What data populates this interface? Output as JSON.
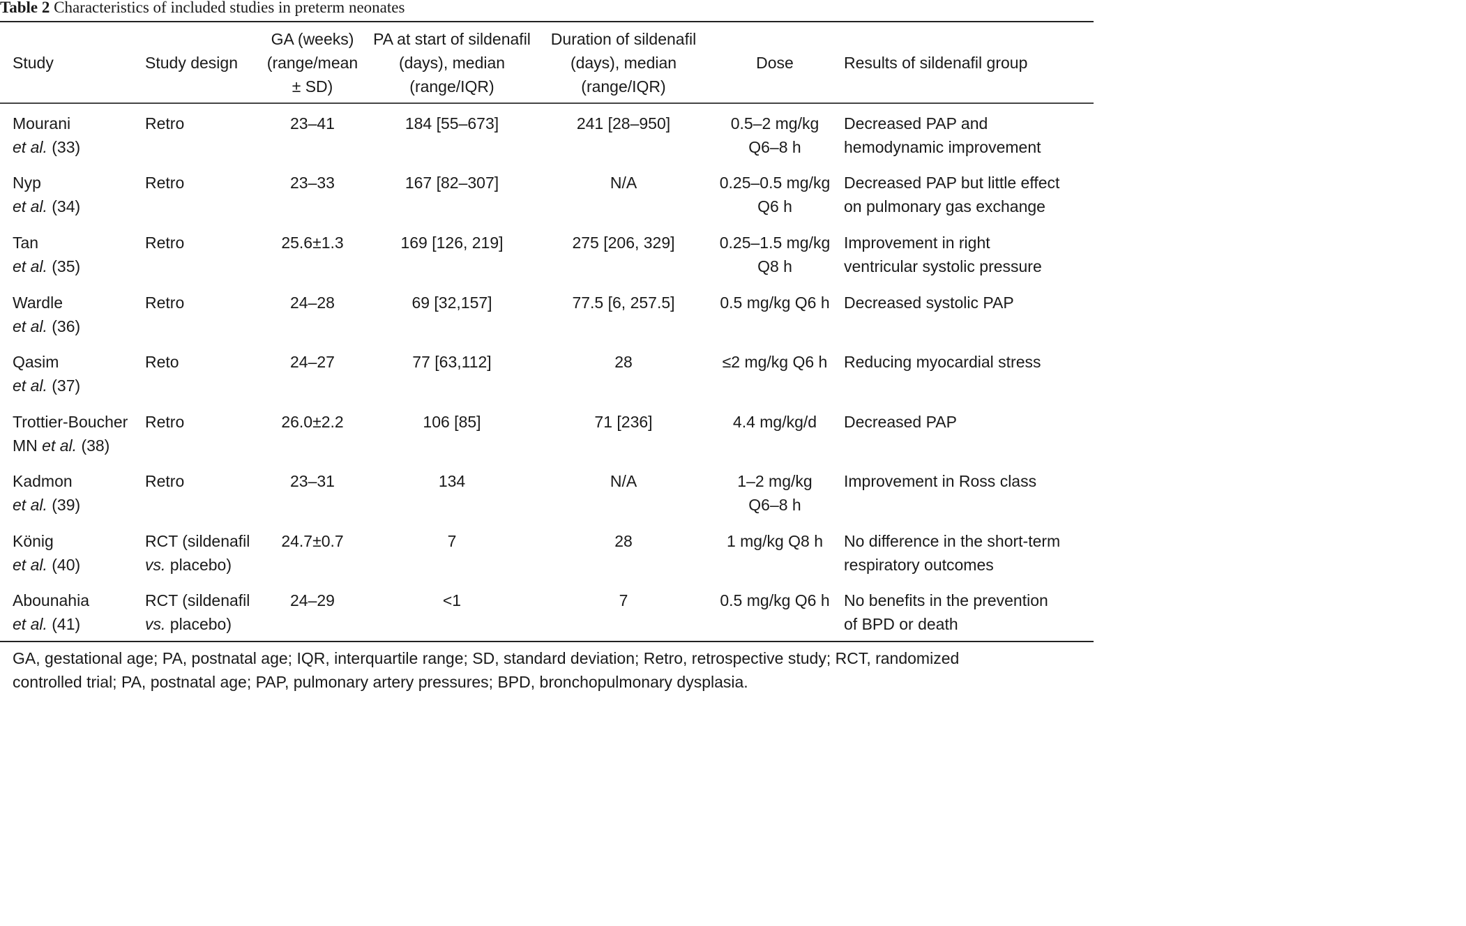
{
  "caption": {
    "label": "Table 2",
    "title": "Characteristics of included studies in preterm neonates"
  },
  "columns": [
    {
      "lines": [
        "Study"
      ]
    },
    {
      "lines": [
        "Study design"
      ]
    },
    {
      "lines": [
        "GA (weeks)",
        "(range/mean",
        "± SD)"
      ]
    },
    {
      "lines": [
        "PA at start of sildenafil",
        "(days), median",
        "(range/IQR)"
      ]
    },
    {
      "lines": [
        "Duration of sildenafil",
        "(days), median",
        "(range/IQR)"
      ]
    },
    {
      "lines": [
        "Dose"
      ]
    },
    {
      "lines": [
        "Results of sildenafil group"
      ]
    }
  ],
  "rows": [
    {
      "study_name": "Mourani",
      "study_prefix": "",
      "study_etal": "et al.",
      "study_ref": "(33)",
      "design": [
        "Retro"
      ],
      "design_vs": false,
      "ga": "23–41",
      "pa": "184 [55–673]",
      "duration": "241 [28–950]",
      "dose": [
        "0.5–2 mg/kg",
        "Q6–8 h"
      ],
      "results": [
        "Decreased PAP and",
        "hemodynamic improvement"
      ]
    },
    {
      "study_name": "Nyp",
      "study_prefix": "",
      "study_etal": "et al.",
      "study_ref": "(34)",
      "design": [
        "Retro"
      ],
      "design_vs": false,
      "ga": "23–33",
      "pa": "167 [82–307]",
      "duration": "N/A",
      "dose": [
        "0.25–0.5 mg/kg",
        "Q6 h"
      ],
      "results": [
        "Decreased PAP but little effect",
        "on pulmonary gas exchange"
      ]
    },
    {
      "study_name": "Tan",
      "study_prefix": "",
      "study_etal": "et al.",
      "study_ref": "(35)",
      "design": [
        "Retro"
      ],
      "design_vs": false,
      "ga": "25.6±1.3",
      "pa": "169 [126, 219]",
      "duration": "275 [206, 329]",
      "dose": [
        "0.25–1.5 mg/kg",
        "Q8 h"
      ],
      "results": [
        "Improvement in right",
        "ventricular systolic pressure"
      ]
    },
    {
      "study_name": "Wardle",
      "study_prefix": "",
      "study_etal": "et al.",
      "study_ref": "(36)",
      "design": [
        "Retro"
      ],
      "design_vs": false,
      "ga": "24–28",
      "pa": "69 [32,157]",
      "duration": "77.5 [6, 257.5]",
      "dose": [
        "0.5 mg/kg Q6 h"
      ],
      "results": [
        "Decreased systolic PAP"
      ]
    },
    {
      "study_name": "Qasim",
      "study_prefix": "",
      "study_etal": "et al.",
      "study_ref": "(37)",
      "design": [
        "Reto"
      ],
      "design_vs": false,
      "ga": "24–27",
      "pa": "77 [63,112]",
      "duration": "28",
      "dose": [
        "≤2 mg/kg Q6 h"
      ],
      "results": [
        "Reducing myocardial stress"
      ]
    },
    {
      "study_name": "Trottier-Boucher",
      "study_prefix": "MN",
      "study_etal": "et al.",
      "study_ref": "(38)",
      "design": [
        "Retro"
      ],
      "design_vs": false,
      "ga": "26.0±2.2",
      "pa": "106 [85]",
      "duration": "71 [236]",
      "dose": [
        "4.4 mg/kg/d"
      ],
      "results": [
        "Decreased PAP"
      ]
    },
    {
      "study_name": "Kadmon",
      "study_prefix": "",
      "study_etal": "et al.",
      "study_ref": "(39)",
      "design": [
        "Retro"
      ],
      "design_vs": false,
      "ga": "23–31",
      "pa": "134",
      "duration": "N/A",
      "dose": [
        "1–2 mg/kg",
        "Q6–8 h"
      ],
      "results": [
        "Improvement in Ross class"
      ]
    },
    {
      "study_name": "König",
      "study_prefix": "",
      "study_etal": "et al.",
      "study_ref": "(40)",
      "design": [
        "RCT (sildenafil",
        "placebo)"
      ],
      "design_vs": true,
      "vs_label": "vs.",
      "ga": "24.7±0.7",
      "pa": "7",
      "duration": "28",
      "dose": [
        "1 mg/kg Q8 h"
      ],
      "results": [
        "No difference in the short-term",
        "respiratory outcomes"
      ]
    },
    {
      "study_name": "Abounahia",
      "study_prefix": "",
      "study_etal": "et al.",
      "study_ref": "(41)",
      "design": [
        "RCT (sildenafil",
        "placebo)"
      ],
      "design_vs": true,
      "vs_label": "vs.",
      "ga": "24–29",
      "pa": "<1",
      "duration": "7",
      "dose": [
        "0.5 mg/kg Q6 h"
      ],
      "results": [
        "No benefits in the prevention",
        "of BPD or death"
      ]
    }
  ],
  "footnote": [
    "GA, gestational age; PA, postnatal age; IQR, interquartile range; SD, standard deviation; Retro, retrospective study; RCT, randomized",
    "controlled trial; PA, postnatal age; PAP, pulmonary artery pressures; BPD,  bronchopulmonary dysplasia."
  ]
}
